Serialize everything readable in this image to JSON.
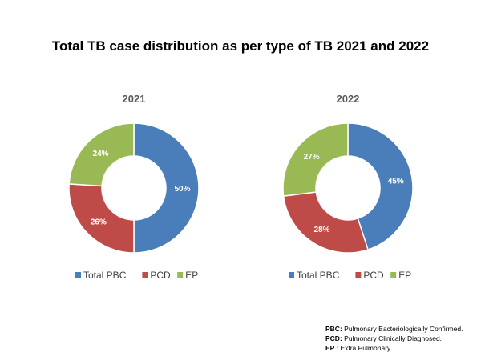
{
  "title": "Total TB case distribution as per type of TB 2021 and 2022",
  "colors": {
    "Total PBC": "#4a7ebb",
    "PCD": "#be4b48",
    "EP": "#98b954"
  },
  "chart_data": [
    {
      "type": "pie",
      "subtype": "donut",
      "title": "2021",
      "categories": [
        "Total PBC",
        "PCD",
        "EP"
      ],
      "values": [
        50,
        26,
        24
      ],
      "labels": [
        "50%",
        "26%",
        "24%"
      ],
      "legend": "bottom"
    },
    {
      "type": "pie",
      "subtype": "donut",
      "title": "2022",
      "categories": [
        "Total PBC",
        "PCD",
        "EP"
      ],
      "values": [
        45,
        28,
        27
      ],
      "labels": [
        "45%",
        "28%",
        "27%"
      ],
      "legend": "bottom"
    }
  ],
  "footnote": [
    {
      "abbr": "PBC:",
      "text": "Pulmonary Bacteriologically Confirmed."
    },
    {
      "abbr": "PCD:",
      "text": "Pulmonary Clinically Diagnosed."
    },
    {
      "abbr": "EP",
      "text": ": Extra Pulmonary"
    }
  ]
}
